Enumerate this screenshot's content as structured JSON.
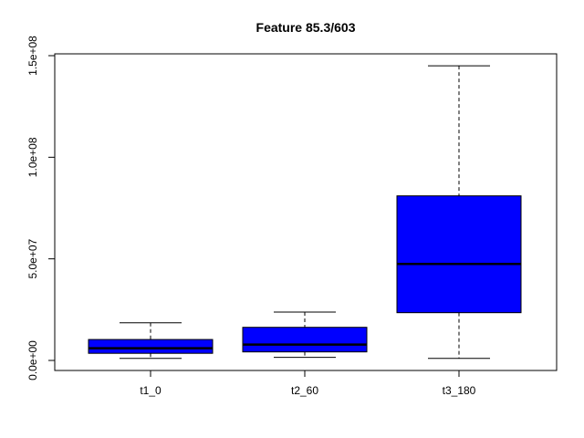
{
  "chart_data": {
    "type": "boxplot",
    "title": "Feature  85.3/603",
    "xlabel": "",
    "ylabel": "",
    "categories": [
      "t1_0",
      "t2_60",
      "t3_180"
    ],
    "boxes": [
      {
        "category": "t1_0",
        "min": 1000000,
        "q1": 3500000,
        "median": 6000000,
        "q3": 10300000,
        "max": 18500000
      },
      {
        "category": "t2_60",
        "min": 1500000,
        "q1": 4200000,
        "median": 7800000,
        "q3": 16300000,
        "max": 23800000
      },
      {
        "category": "t3_180",
        "min": 1000000,
        "q1": 23500000,
        "median": 47500000,
        "q3": 81000000,
        "max": 145000000
      }
    ],
    "ylim": [
      0,
      150000000
    ],
    "yticks": [
      0,
      50000000,
      100000000,
      150000000
    ],
    "ytick_labels": [
      "0.0e+00",
      "5.0e+07",
      "1.0e+08",
      "1.5e+08"
    ],
    "box_fill": "#0000ff",
    "grid": false
  }
}
